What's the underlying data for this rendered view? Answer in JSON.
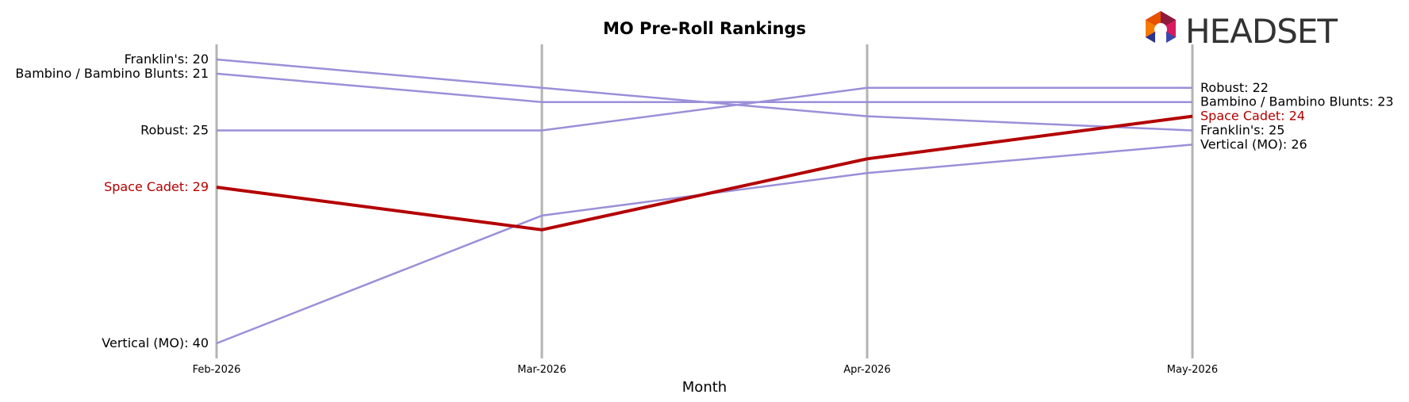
{
  "chart_data": {
    "type": "line",
    "title": "MO Pre-Roll Rankings",
    "xlabel": "Month",
    "ylabel": "",
    "x": [
      "Feb-2026",
      "Mar-2026",
      "Apr-2026",
      "May-2026"
    ],
    "y_inverted": true,
    "ylim": [
      19,
      41
    ],
    "grid": "vertical lines at each month",
    "series": [
      {
        "name": "Franklin's",
        "values": [
          20,
          22,
          24,
          25
        ],
        "color": "#9b8fd8",
        "highlight": false
      },
      {
        "name": "Bambino / Bambino Blunts",
        "values": [
          21,
          23,
          23,
          23
        ],
        "color": "#9b8fd8",
        "highlight": false
      },
      {
        "name": "Robust",
        "values": [
          25,
          25,
          22,
          22
        ],
        "color": "#9b8fd8",
        "highlight": false
      },
      {
        "name": "Space Cadet",
        "values": [
          29,
          32,
          27,
          24
        ],
        "color": "#b30000",
        "highlight": true
      },
      {
        "name": "Vertical (MO)",
        "values": [
          40,
          31,
          28,
          26
        ],
        "color": "#9b8fd8",
        "highlight": false
      }
    ]
  },
  "logo": {
    "text": "HEADSET"
  }
}
